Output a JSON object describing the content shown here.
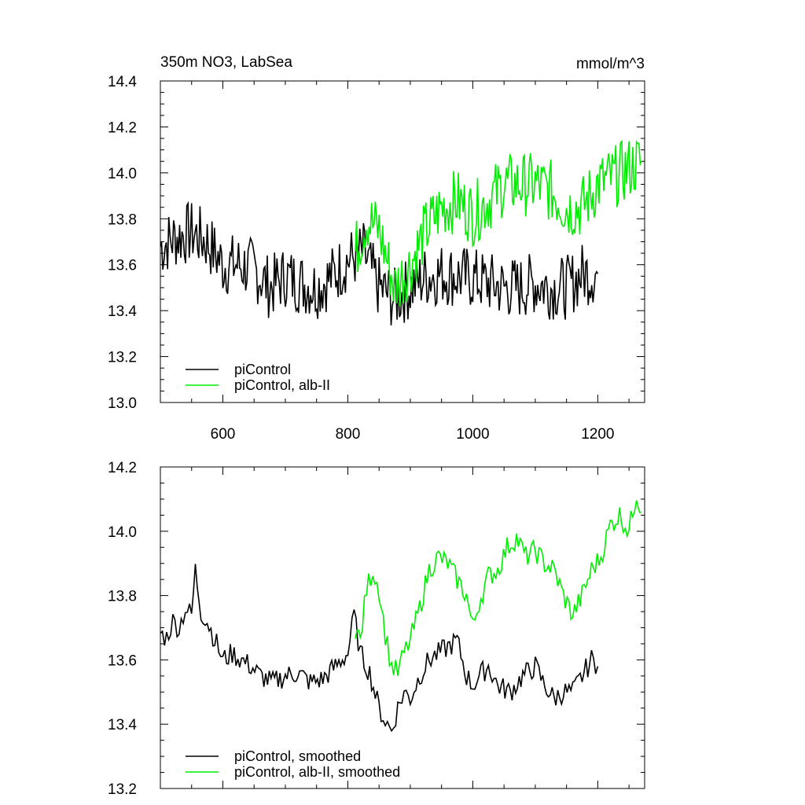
{
  "chart_data": [
    {
      "type": "line",
      "title": "350m NO3, LabSea",
      "units": "mmol/m^3",
      "xlabel": "",
      "ylabel": "",
      "xlim": [
        500,
        1275
      ],
      "ylim": [
        13.0,
        14.4
      ],
      "xticks": [
        600,
        800,
        1000,
        1200
      ],
      "yticks": [
        13.0,
        13.2,
        13.4,
        13.6,
        13.8,
        14.0,
        14.2,
        14.4
      ],
      "xtick_labels": [
        "600",
        "800",
        "1000",
        "1200"
      ],
      "ytick_labels": [
        "13.0",
        "13.2",
        "13.4",
        "13.6",
        "13.8",
        "14.0",
        "14.2",
        "14.4"
      ],
      "legend_position": "bottom-left",
      "series": [
        {
          "name": "piControl",
          "color": "#000000",
          "x": [
            500,
            525,
            550,
            575,
            600,
            625,
            650,
            675,
            700,
            725,
            750,
            775,
            800,
            825,
            850,
            875,
            900,
            925,
            950,
            975,
            1000,
            1025,
            1050,
            1075,
            1100,
            1125,
            1150,
            1175,
            1200
          ],
          "y": [
            13.68,
            13.72,
            13.74,
            13.7,
            13.6,
            13.6,
            13.58,
            13.5,
            13.55,
            13.52,
            13.5,
            13.55,
            13.62,
            13.65,
            13.5,
            13.45,
            13.5,
            13.55,
            13.56,
            13.55,
            13.54,
            13.52,
            13.5,
            13.5,
            13.52,
            13.5,
            13.5,
            13.56,
            13.56
          ]
        },
        {
          "name": "piControl, alb-II",
          "color": "#00ee00",
          "x": [
            812,
            830,
            850,
            875,
            900,
            925,
            950,
            975,
            1000,
            1025,
            1050,
            1075,
            1100,
            1125,
            1150,
            1175,
            1200,
            1225,
            1250,
            1270
          ],
          "y": [
            13.65,
            13.8,
            13.75,
            13.5,
            13.6,
            13.75,
            13.85,
            13.88,
            13.82,
            13.88,
            13.95,
            13.95,
            13.95,
            13.92,
            13.85,
            13.85,
            13.95,
            13.98,
            14.02,
            14.05
          ]
        }
      ]
    },
    {
      "type": "line",
      "title": "",
      "units": "",
      "xlabel": "",
      "ylabel": "",
      "xlim": [
        500,
        1275
      ],
      "ylim": [
        13.2,
        14.2
      ],
      "xticks": [
        600,
        800,
        1000,
        1200
      ],
      "yticks": [
        13.2,
        13.4,
        13.6,
        13.8,
        14.0,
        14.2
      ],
      "xtick_labels": [],
      "ytick_labels": [
        "13.2",
        "13.4",
        "13.6",
        "13.8",
        "14.0",
        "14.2"
      ],
      "legend_position": "bottom-left",
      "series": [
        {
          "name": "piControl, smoothed",
          "color": "#000000",
          "x": [
            500,
            510,
            520,
            530,
            540,
            550,
            556,
            565,
            575,
            590,
            600,
            615,
            630,
            645,
            660,
            680,
            700,
            720,
            740,
            760,
            780,
            800,
            810,
            820,
            835,
            850,
            860,
            870,
            880,
            890,
            900,
            915,
            930,
            945,
            960,
            975,
            990,
            1000,
            1010,
            1025,
            1040,
            1060,
            1080,
            1100,
            1115,
            1130,
            1145,
            1160,
            1175,
            1190,
            1200
          ],
          "y": [
            13.68,
            13.67,
            13.72,
            13.7,
            13.76,
            13.74,
            13.88,
            13.75,
            13.72,
            13.65,
            13.6,
            13.62,
            13.6,
            13.58,
            13.55,
            13.53,
            13.55,
            13.56,
            13.53,
            13.54,
            13.58,
            13.62,
            13.74,
            13.62,
            13.56,
            13.45,
            13.41,
            13.38,
            13.45,
            13.5,
            13.48,
            13.55,
            13.6,
            13.62,
            13.64,
            13.66,
            13.55,
            13.52,
            13.55,
            13.58,
            13.52,
            13.5,
            13.55,
            13.58,
            13.52,
            13.48,
            13.5,
            13.5,
            13.55,
            13.6,
            13.58
          ]
        },
        {
          "name": "piControl, alb-II, smoothed",
          "color": "#00ee00",
          "x": [
            812,
            820,
            830,
            840,
            850,
            860,
            870,
            880,
            890,
            900,
            915,
            930,
            945,
            960,
            975,
            990,
            1000,
            1010,
            1025,
            1040,
            1055,
            1070,
            1085,
            1100,
            1115,
            1130,
            1145,
            1160,
            1175,
            1190,
            1205,
            1220,
            1235,
            1250,
            1262,
            1270
          ],
          "y": [
            13.7,
            13.66,
            13.82,
            13.88,
            13.82,
            13.68,
            13.58,
            13.56,
            13.62,
            13.66,
            13.76,
            13.88,
            13.92,
            13.9,
            13.85,
            13.8,
            13.7,
            13.78,
            13.86,
            13.88,
            13.95,
            13.98,
            13.92,
            13.94,
            13.9,
            13.88,
            13.8,
            13.74,
            13.8,
            13.88,
            13.92,
            14.02,
            14.05,
            14.0,
            14.12,
            14.06
          ]
        }
      ]
    }
  ]
}
